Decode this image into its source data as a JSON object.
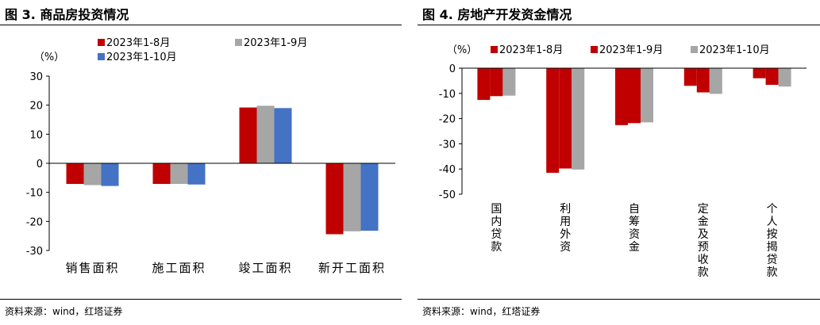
{
  "left": {
    "title": "图 3. 商品房投资情况",
    "source": "资料来源：wind，红塔证券"
  },
  "right": {
    "title": "图 4. 房地产开发资金情况",
    "source": "资料来源：wind，红塔证券"
  },
  "chart_data": [
    {
      "type": "bar",
      "ylabel": "（%）",
      "ylim": [
        -30,
        30
      ],
      "yticks": [
        30,
        20,
        10,
        0,
        -10,
        -20,
        -30
      ],
      "grid": false,
      "legend_position": "top",
      "categories": [
        "销售面积",
        "施工面积",
        "竣工面积",
        "新开工面积"
      ],
      "series": [
        {
          "name": "2023年1-8月",
          "color": "#c00000",
          "values": [
            -7.1,
            -7.1,
            19.2,
            -24.4
          ]
        },
        {
          "name": "2023年1-9月",
          "color": "#a6a6a6",
          "values": [
            -7.5,
            -7.1,
            19.8,
            -23.4
          ]
        },
        {
          "name": "2023年1-10月",
          "color": "#4472c4",
          "values": [
            -7.8,
            -7.3,
            19.0,
            -23.2
          ]
        }
      ]
    },
    {
      "type": "bar",
      "ylabel": "（%）",
      "ylim": [
        -50,
        0
      ],
      "yticks": [
        0,
        -10,
        -20,
        -30,
        -40,
        -50
      ],
      "grid": false,
      "legend_position": "top",
      "categories": [
        "国内贷款",
        "利用外资",
        "自筹资金",
        "定金及预收款",
        "个人按揭贷款"
      ],
      "series": [
        {
          "name": "2023年1-8月",
          "color": "#c00000",
          "values": [
            -12.6,
            -41.5,
            -22.6,
            -7.0,
            -4.0
          ]
        },
        {
          "name": "2023年1-9月",
          "color": "#c00000",
          "values": [
            -11.1,
            -39.8,
            -21.8,
            -9.6,
            -6.6
          ]
        },
        {
          "name": "2023年1-10月",
          "color": "#a6a6a6",
          "values": [
            -10.9,
            -40.2,
            -21.5,
            -10.2,
            -7.3
          ]
        }
      ]
    }
  ]
}
